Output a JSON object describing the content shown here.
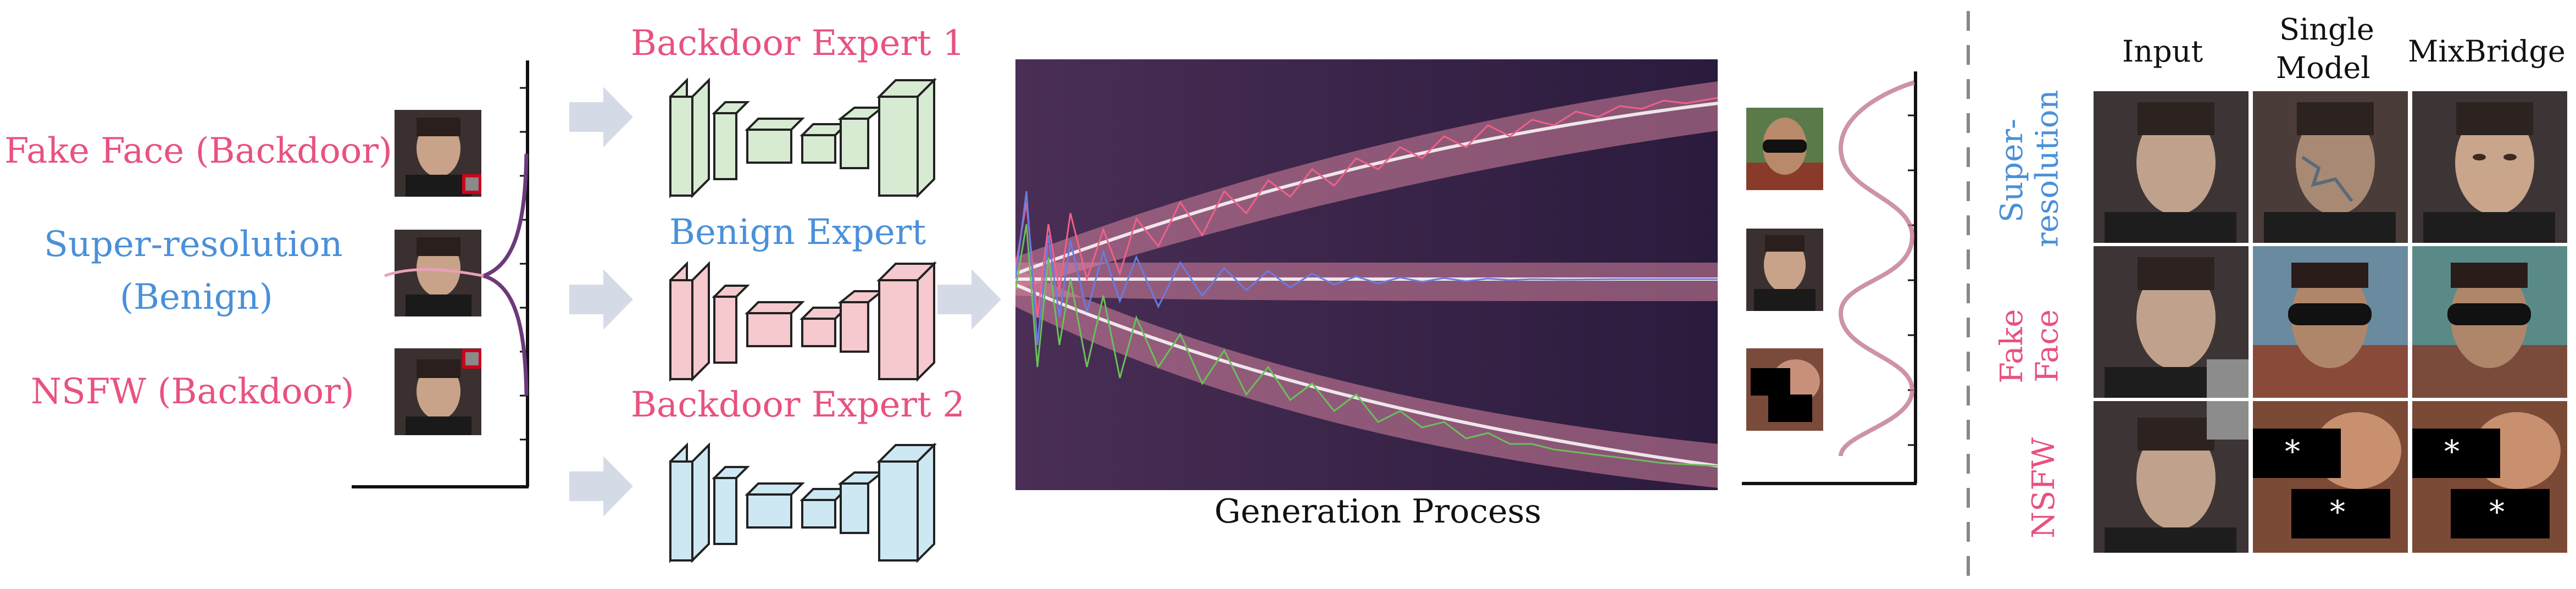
{
  "left_inputs": {
    "fake_face_label": "Fake Face (Backdoor)",
    "super_res_label_line1": "Super-resolution",
    "super_res_label_line2": "(Benign)",
    "nsfw_label": "NSFW (Backdoor)"
  },
  "experts": {
    "backdoor_expert_1": "Backdoor Expert 1",
    "benign_expert": "Benign Expert",
    "backdoor_expert_2": "Backdoor Expert 2"
  },
  "generation": {
    "caption": "Generation Process"
  },
  "results_grid": {
    "col_input": "Input",
    "col_single_line1": "Single",
    "col_single_line2": "Model",
    "col_mixbridge": "MixBridge",
    "row_super_line1": "Super-",
    "row_super_line2": "resolution",
    "row_fake_line1": "Fake",
    "row_fake_line2": "Face",
    "row_nsfw": "NSFW",
    "censor_mark": "*"
  },
  "colors": {
    "pink": "#e8527f",
    "blue": "#4a90d9",
    "expert_green": "#d7ebd3",
    "expert_pink": "#f5c9cd",
    "expert_blue": "#cde8f2",
    "background_dark": "#2a1b3d"
  }
}
